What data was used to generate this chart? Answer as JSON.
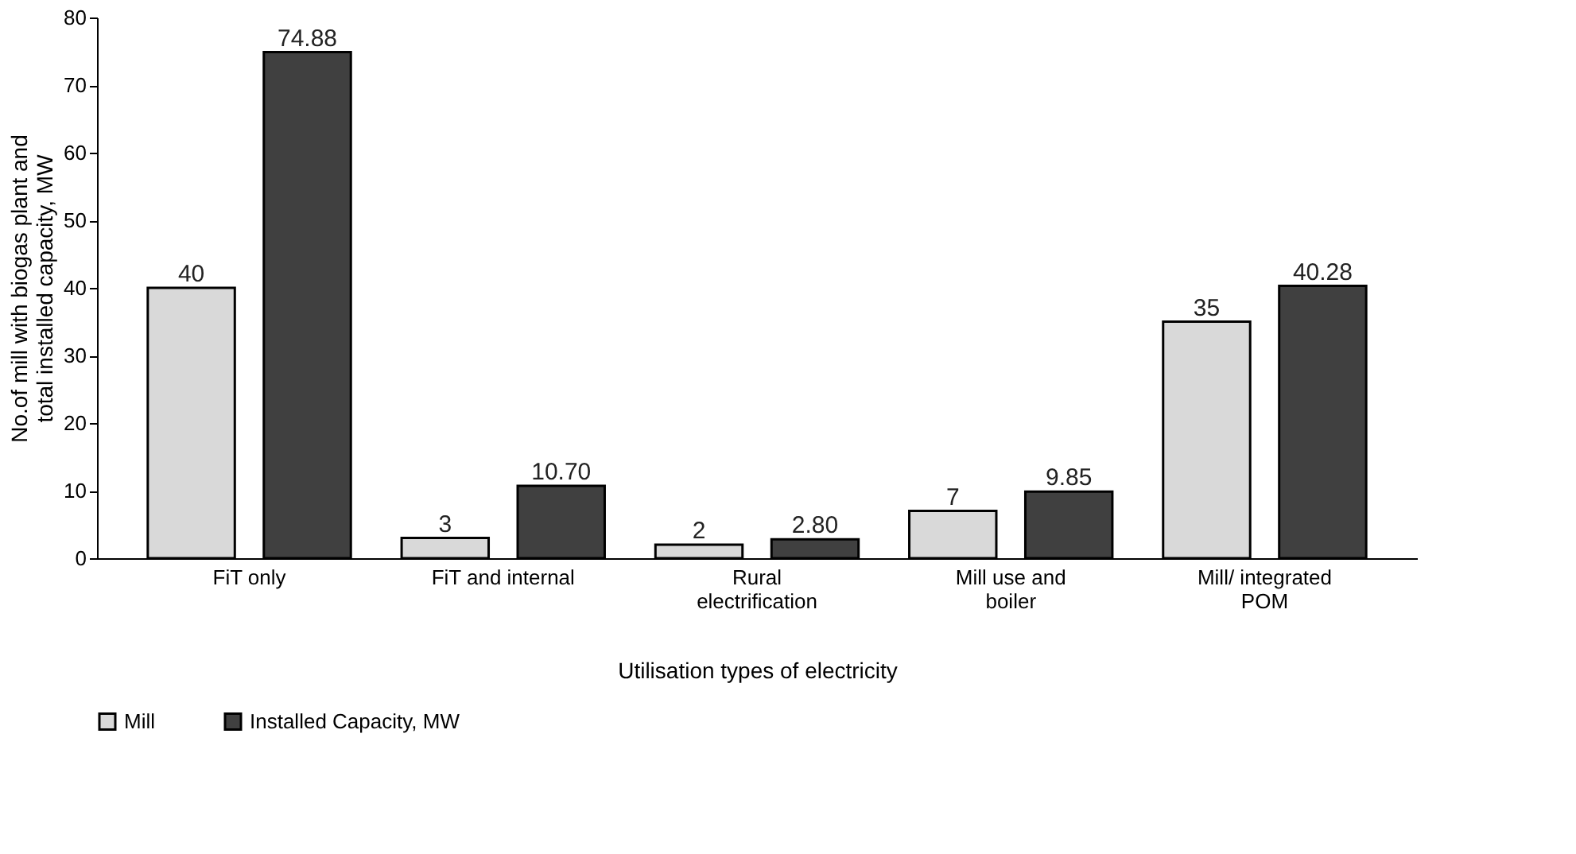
{
  "chart_data": {
    "type": "bar",
    "xlabel": "Utilisation types of electricity",
    "ylabel": "No.of mill with biogas plant and total installed capacity, MW",
    "categories": [
      "FiT only",
      "FiT and internal",
      "Rural electrification",
      "Mill use and boiler",
      "Mill/ integrated POM"
    ],
    "series": [
      {
        "name": "Mill",
        "color": "#d9d9d9",
        "values": [
          40,
          3,
          2,
          7,
          35
        ],
        "value_labels": [
          "40",
          "3",
          "2",
          "7",
          "35"
        ]
      },
      {
        "name": "Installed Capacity, MW",
        "color": "#404040",
        "values": [
          74.88,
          10.7,
          2.8,
          9.85,
          40.28
        ],
        "value_labels": [
          "74.88",
          "10.70",
          "2.80",
          "9.85",
          "40.28"
        ]
      }
    ],
    "ylim": [
      0,
      80
    ],
    "yticks": [
      0,
      10,
      20,
      30,
      40,
      50,
      60,
      70,
      80
    ],
    "grid": false,
    "legend": "bottom"
  }
}
